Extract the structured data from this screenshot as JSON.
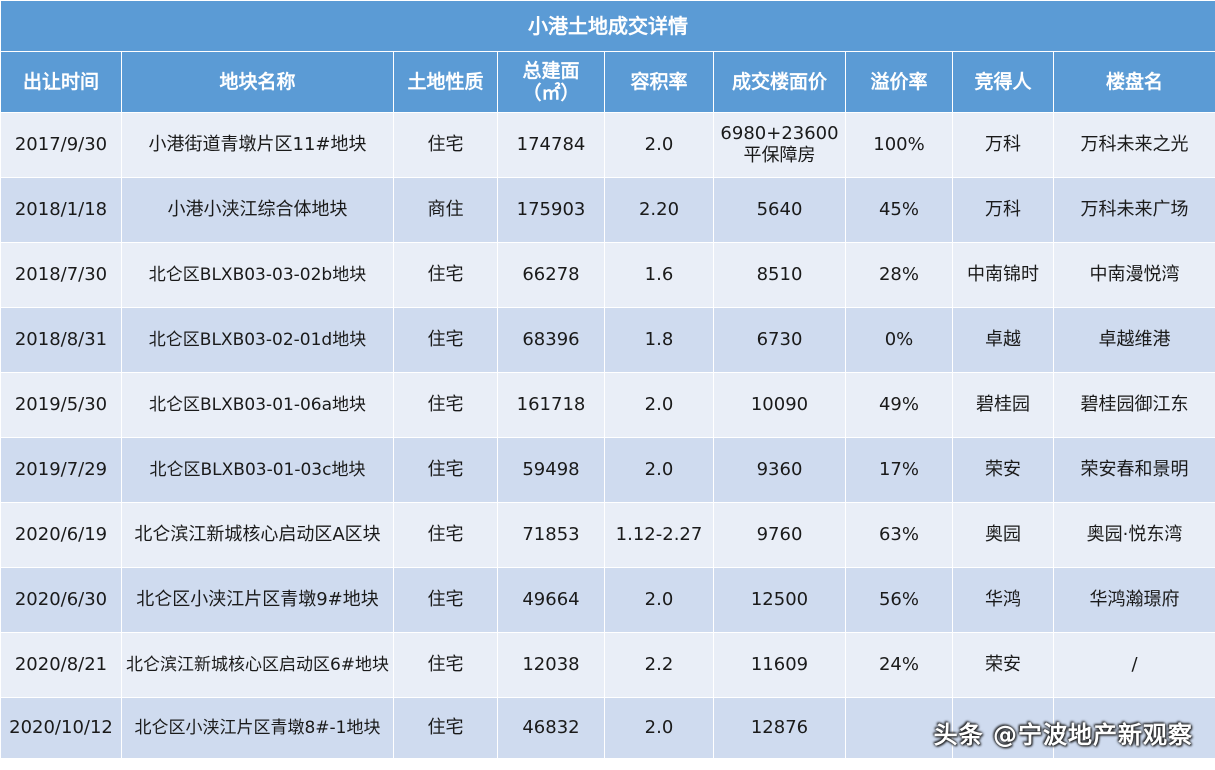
{
  "table": {
    "title": "小港土地成交详情",
    "headers": [
      {
        "line1": "出让时间",
        "line2": ""
      },
      {
        "line1": "地块名称",
        "line2": ""
      },
      {
        "line1": "土地性质",
        "line2": ""
      },
      {
        "line1": "总建面",
        "line2": "（㎡）"
      },
      {
        "line1": "容积率",
        "line2": ""
      },
      {
        "line1": "成交楼面价",
        "line2": ""
      },
      {
        "line1": "溢价率",
        "line2": ""
      },
      {
        "line1": "竞得人",
        "line2": ""
      },
      {
        "line1": "楼盘名",
        "line2": ""
      }
    ],
    "rows": [
      {
        "date": "2017/9/30",
        "name": "小港街道青墩片区11#地块",
        "type": "住宅",
        "area": "174784",
        "far": "2.0",
        "price": "6980+23600",
        "price2": "平保障房",
        "premium": "100%",
        "buyer": "万科",
        "project": "万科未来之光"
      },
      {
        "date": "2018/1/18",
        "name": "小港小浃江综合体地块",
        "type": "商住",
        "area": "175903",
        "far": "2.20",
        "price": "5640",
        "price2": "",
        "premium": "45%",
        "buyer": "万科",
        "project": "万科未来广场"
      },
      {
        "date": "2018/7/30",
        "name": "北仑区BLXB03-03-02b地块",
        "type": "住宅",
        "area": "66278",
        "far": "1.6",
        "price": "8510",
        "price2": "",
        "premium": "28%",
        "buyer": "中南锦时",
        "project": "中南漫悦湾"
      },
      {
        "date": "2018/8/31",
        "name": "北仑区BLXB03-02-01d地块",
        "type": "住宅",
        "area": "68396",
        "far": "1.8",
        "price": "6730",
        "price2": "",
        "premium": "0%",
        "buyer": "卓越",
        "project": "卓越维港"
      },
      {
        "date": "2019/5/30",
        "name": "北仑区BLXB03-01-06a地块",
        "type": "住宅",
        "area": "161718",
        "far": "2.0",
        "price": "10090",
        "price2": "",
        "premium": "49%",
        "buyer": "碧桂园",
        "project": "碧桂园御江东"
      },
      {
        "date": "2019/7/29",
        "name": "北仑区BLXB03-01-03c地块",
        "type": "住宅",
        "area": "59498",
        "far": "2.0",
        "price": "9360",
        "price2": "",
        "premium": "17%",
        "buyer": "荣安",
        "project": "荣安春和景明"
      },
      {
        "date": "2020/6/19",
        "name": "北仑滨江新城核心启动区A区块",
        "type": "住宅",
        "area": "71853",
        "far": "1.12-2.27",
        "price": "9760",
        "price2": "",
        "premium": "63%",
        "buyer": "奥园",
        "project": "奥园·悦东湾"
      },
      {
        "date": "2020/6/30",
        "name": "北仑区小浃江片区青墩9#地块",
        "type": "住宅",
        "area": "49664",
        "far": "2.0",
        "price": "12500",
        "price2": "",
        "premium": "56%",
        "buyer": "华鸿",
        "project": "华鸿瀚璟府"
      },
      {
        "date": "2020/8/21",
        "name": "北仑滨江新城核心区启动区6#地块",
        "type": "住宅",
        "area": "12038",
        "far": "2.2",
        "price": "11609",
        "price2": "",
        "premium": "24%",
        "buyer": "荣安",
        "project": "/"
      },
      {
        "date": "2020/10/12",
        "name": "北仑区小浃江片区青墩8#-1地块",
        "type": "住宅",
        "area": "46832",
        "far": "2.0",
        "price": "12876",
        "price2": "",
        "premium": "",
        "buyer": "",
        "project": ""
      }
    ]
  },
  "watermark": "头条 @宁波地产新观察"
}
